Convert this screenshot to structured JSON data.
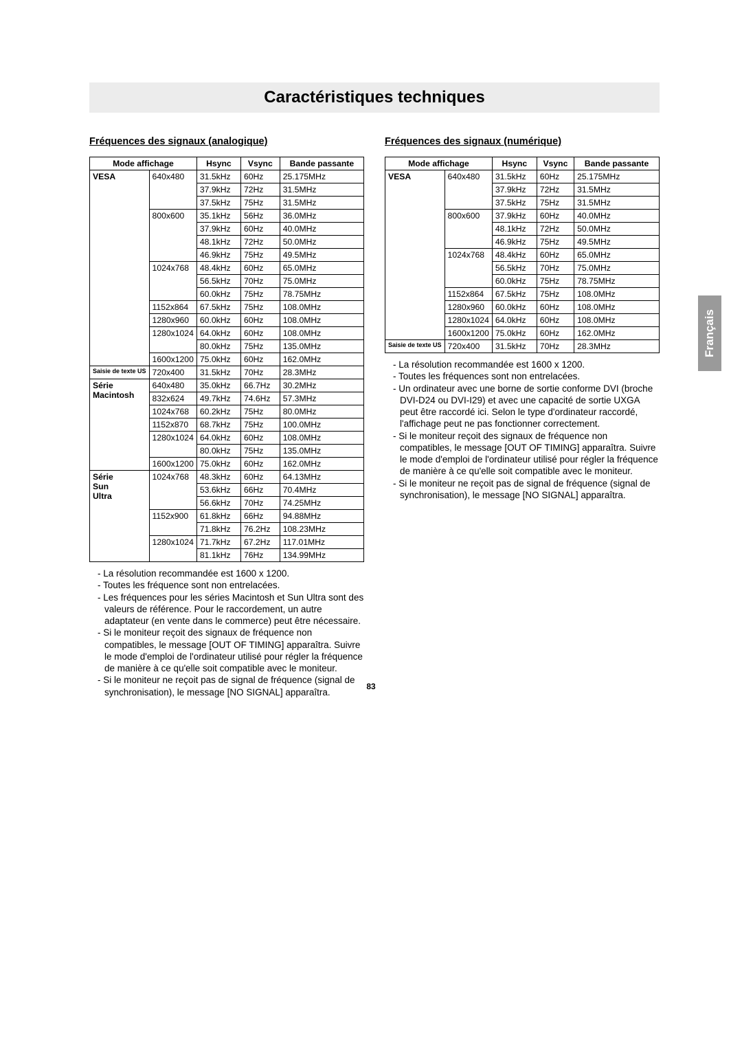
{
  "page": {
    "title": "Caractéristiques techniques",
    "number": "83",
    "language_tab": "Français"
  },
  "analog": {
    "heading": "Fréquences des signaux (analogique)",
    "headers": {
      "mode": "Mode affichage",
      "hsync": "Hsync",
      "vsync": "Vsync",
      "band": "Bande passante"
    },
    "groups": [
      {
        "label": "VESA",
        "labelClass": "",
        "blocks": [
          {
            "res": "640x480",
            "rows": [
              [
                "31.5kHz",
                "60Hz",
                "25.175MHz"
              ],
              [
                "37.9kHz",
                "72Hz",
                "31.5MHz"
              ],
              [
                "37.5kHz",
                "75Hz",
                "31.5MHz"
              ]
            ]
          },
          {
            "res": "800x600",
            "rows": [
              [
                "35.1kHz",
                "56Hz",
                "36.0MHz"
              ],
              [
                "37.9kHz",
                "60Hz",
                "40.0MHz"
              ],
              [
                "48.1kHz",
                "72Hz",
                "50.0MHz"
              ],
              [
                "46.9kHz",
                "75Hz",
                "49.5MHz"
              ]
            ]
          },
          {
            "res": "1024x768",
            "rows": [
              [
                "48.4kHz",
                "60Hz",
                "65.0MHz"
              ],
              [
                "56.5kHz",
                "70Hz",
                "75.0MHz"
              ],
              [
                "60.0kHz",
                "75Hz",
                "78.75MHz"
              ]
            ]
          },
          {
            "res": "1152x864",
            "rows": [
              [
                "67.5kHz",
                "75Hz",
                "108.0MHz"
              ]
            ]
          },
          {
            "res": "1280x960",
            "rows": [
              [
                "60.0kHz",
                "60Hz",
                "108.0MHz"
              ]
            ]
          },
          {
            "res": "1280x1024",
            "rows": [
              [
                "64.0kHz",
                "60Hz",
                "108.0MHz"
              ],
              [
                "80.0kHz",
                "75Hz",
                "135.0MHz"
              ]
            ]
          },
          {
            "res": "1600x1200",
            "rows": [
              [
                "75.0kHz",
                "60Hz",
                "162.0MHz"
              ]
            ]
          }
        ]
      },
      {
        "label": "Saisie de texte US",
        "labelClass": "tiny",
        "blocks": [
          {
            "res": "720x400",
            "rows": [
              [
                "31.5kHz",
                "70Hz",
                "28.3MHz"
              ]
            ]
          }
        ]
      },
      {
        "label": "Série Macintosh",
        "labelClass": "",
        "blocks": [
          {
            "res": "640x480",
            "rows": [
              [
                "35.0kHz",
                "66.7Hz",
                "30.2MHz"
              ]
            ]
          },
          {
            "res": "832x624",
            "rows": [
              [
                "49.7kHz",
                "74.6Hz",
                "57.3MHz"
              ]
            ]
          },
          {
            "res": "1024x768",
            "rows": [
              [
                "60.2kHz",
                "75Hz",
                "80.0MHz"
              ]
            ]
          },
          {
            "res": "1152x870",
            "rows": [
              [
                "68.7kHz",
                "75Hz",
                "100.0MHz"
              ]
            ]
          },
          {
            "res": "1280x1024",
            "rows": [
              [
                "64.0kHz",
                "60Hz",
                "108.0MHz"
              ],
              [
                "80.0kHz",
                "75Hz",
                "135.0MHz"
              ]
            ]
          },
          {
            "res": "1600x1200",
            "rows": [
              [
                "75.0kHz",
                "60Hz",
                "162.0MHz"
              ]
            ]
          }
        ]
      },
      {
        "label": "Série Sun Ultra",
        "labelClass": "",
        "blocks": [
          {
            "res": "1024x768",
            "rows": [
              [
                "48.3kHz",
                "60Hz",
                "64.13MHz"
              ],
              [
                "53.6kHz",
                "66Hz",
                "70.4MHz"
              ],
              [
                "56.6kHz",
                "70Hz",
                "74.25MHz"
              ]
            ]
          },
          {
            "res": "1152x900",
            "rows": [
              [
                "61.8kHz",
                "66Hz",
                "94.88MHz"
              ],
              [
                "71.8kHz",
                "76.2Hz",
                "108.23MHz"
              ]
            ]
          },
          {
            "res": "1280x1024",
            "rows": [
              [
                "71.7kHz",
                "67.2Hz",
                "117.01MHz"
              ],
              [
                "81.1kHz",
                "76Hz",
                "134.99MHz"
              ]
            ]
          }
        ]
      }
    ],
    "notes": [
      "La résolution recommandée est 1600 x 1200.",
      "Toutes les fréquence sont non entrelacées.",
      "Les fréquences pour les séries Macintosh et Sun Ultra sont des valeurs de référence. Pour le raccordement, un autre adaptateur (en vente dans le commerce) peut être nécessaire.",
      "Si le moniteur reçoit des signaux de fréquence non compatibles, le message [OUT OF TIMING] apparaîtra. Suivre le mode d'emploi de l'ordinateur utilisé pour régler la fréquence de manière à ce qu'elle soit compatible avec le moniteur.",
      "Si le moniteur ne reçoit pas de signal de fréquence (signal de synchronisation), le message [NO SIGNAL] apparaîtra."
    ]
  },
  "digital": {
    "heading": "Fréquences des signaux (numérique)",
    "headers": {
      "mode": "Mode affichage",
      "hsync": "Hsync",
      "vsync": "Vsync",
      "band": "Bande passante"
    },
    "groups": [
      {
        "label": "VESA",
        "labelClass": "",
        "blocks": [
          {
            "res": "640x480",
            "rows": [
              [
                "31.5kHz",
                "60Hz",
                "25.175MHz"
              ],
              [
                "37.9kHz",
                "72Hz",
                "31.5MHz"
              ],
              [
                "37.5kHz",
                "75Hz",
                "31.5MHz"
              ]
            ]
          },
          {
            "res": "800x600",
            "rows": [
              [
                "37.9kHz",
                "60Hz",
                "40.0MHz"
              ],
              [
                "48.1kHz",
                "72Hz",
                "50.0MHz"
              ],
              [
                "46.9kHz",
                "75Hz",
                "49.5MHz"
              ]
            ]
          },
          {
            "res": "1024x768",
            "rows": [
              [
                "48.4kHz",
                "60Hz",
                "65.0MHz"
              ],
              [
                "56.5kHz",
                "70Hz",
                "75.0MHz"
              ],
              [
                "60.0kHz",
                "75Hz",
                "78.75MHz"
              ]
            ]
          },
          {
            "res": "1152x864",
            "rows": [
              [
                "67.5kHz",
                "75Hz",
                "108.0MHz"
              ]
            ]
          },
          {
            "res": "1280x960",
            "rows": [
              [
                "60.0kHz",
                "60Hz",
                "108.0MHz"
              ]
            ]
          },
          {
            "res": "1280x1024",
            "rows": [
              [
                "64.0kHz",
                "60Hz",
                "108.0MHz"
              ]
            ]
          },
          {
            "res": "1600x1200",
            "rows": [
              [
                "75.0kHz",
                "60Hz",
                "162.0MHz"
              ]
            ]
          }
        ]
      },
      {
        "label": "Saisie de texte US",
        "labelClass": "tiny",
        "blocks": [
          {
            "res": "720x400",
            "rows": [
              [
                "31.5kHz",
                "70Hz",
                "28.3MHz"
              ]
            ]
          }
        ]
      }
    ],
    "notes": [
      "La résolution recommandée est 1600 x 1200.",
      "Toutes les fréquences sont non entrelacées.",
      "Un ordinateur avec une borne de sortie conforme DVI (broche DVI-D24 ou DVI-I29) et avec une capacité de sortie UXGA peut être raccordé ici. Selon le type d'ordinateur raccordé, l'affichage peut ne pas fonctionner correctement.",
      "Si le moniteur reçoit des signaux de fréquence non compatibles, le message [OUT OF TIMING] apparaîtra. Suivre le mode d'emploi de l'ordinateur utilisé pour régler la fréquence de manière à ce qu'elle soit compatible avec le moniteur.",
      "Si le moniteur ne reçoit pas de signal de fréquence (signal de synchronisation), le message [NO SIGNAL] apparaîtra."
    ]
  }
}
